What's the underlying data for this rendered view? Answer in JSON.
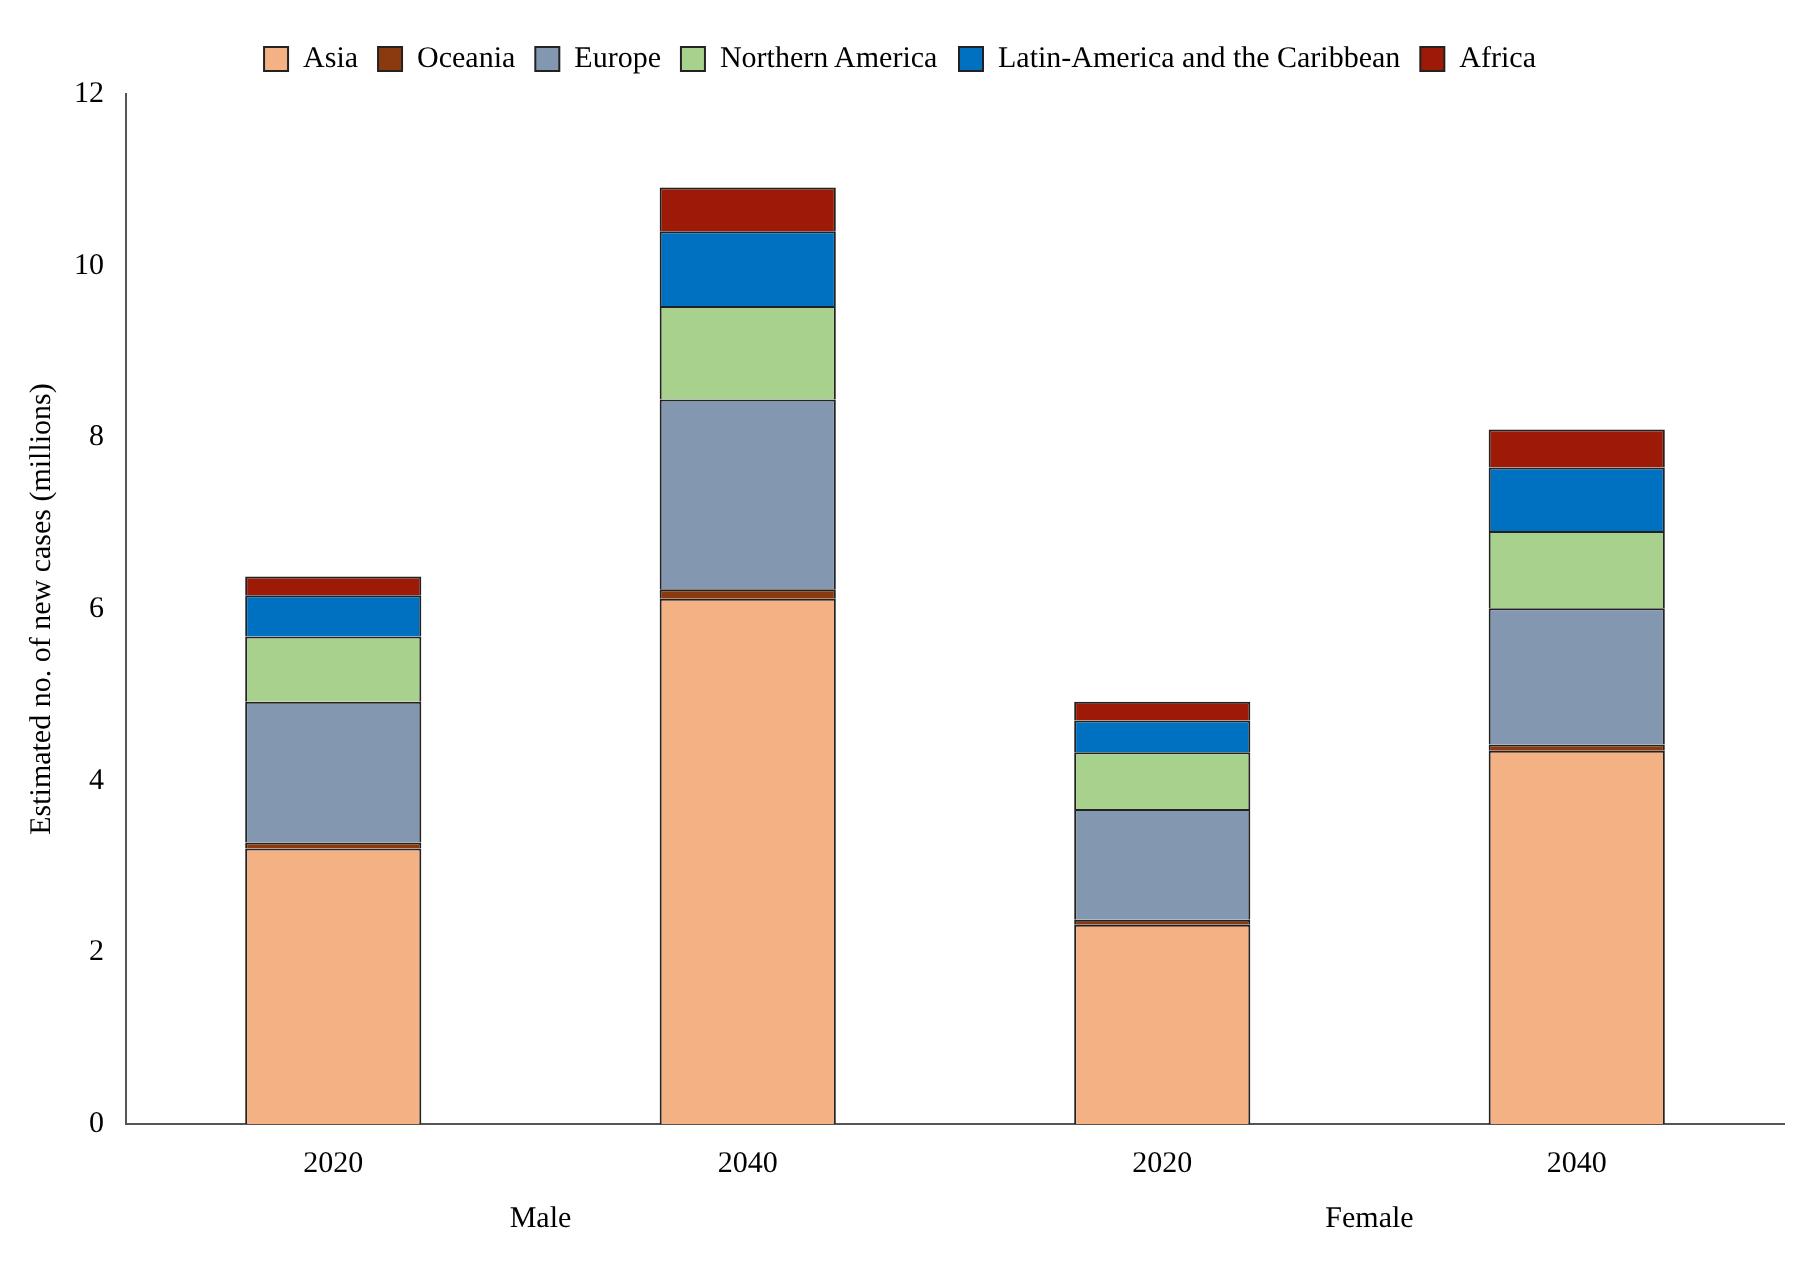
{
  "chart_data": {
    "type": "bar",
    "stacked": true,
    "ylabel": "Estimated no. of new cases (millions)",
    "categories": [
      "2020",
      "2040",
      "2020",
      "2040"
    ],
    "series": [
      {
        "name": "Asia",
        "color": "#f4b183",
        "values": [
          3.21,
          6.12,
          2.32,
          4.35
        ]
      },
      {
        "name": "Oceania",
        "color": "#8b3a0f",
        "values": [
          0.07,
          0.11,
          0.06,
          0.07
        ]
      },
      {
        "name": "Europe",
        "color": "#8497b0",
        "values": [
          1.64,
          2.21,
          1.29,
          1.59
        ]
      },
      {
        "name": "Northern America",
        "color": "#a9d18e",
        "values": [
          0.76,
          1.09,
          0.66,
          0.9
        ]
      },
      {
        "name": "Latin-America and the Caribbean",
        "color": "#0070c0",
        "values": [
          0.48,
          0.87,
          0.37,
          0.74
        ]
      },
      {
        "name": "Africa",
        "color": "#9c1a06",
        "values": [
          0.22,
          0.51,
          0.22,
          0.44
        ]
      }
    ],
    "ylim": [
      0,
      12
    ],
    "yticks": [
      0,
      2,
      4,
      6,
      8,
      10,
      12
    ],
    "grid": false,
    "legend": "top",
    "annotations": [
      "Male",
      "Female"
    ]
  }
}
